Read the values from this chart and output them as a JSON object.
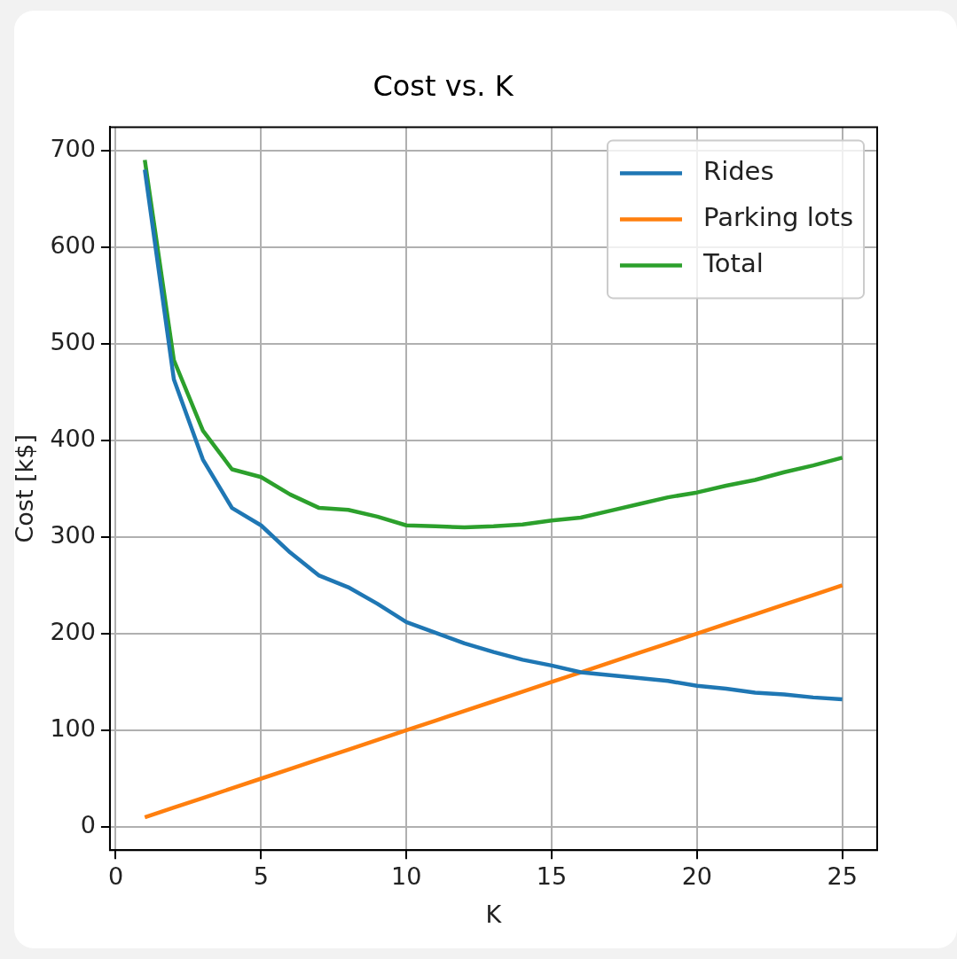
{
  "chart_data": {
    "type": "line",
    "title": "Cost vs. K",
    "xlabel": "K",
    "ylabel": "Cost [k$]",
    "x": [
      1,
      2,
      3,
      4,
      5,
      6,
      7,
      8,
      9,
      10,
      11,
      12,
      13,
      14,
      15,
      16,
      17,
      18,
      19,
      20,
      21,
      22,
      23,
      24,
      25
    ],
    "series": [
      {
        "name": "Rides",
        "color": "#1f77b4",
        "values": [
          680,
          463,
          380,
          330,
          312,
          284,
          260,
          248,
          231,
          212,
          201,
          190,
          181,
          173,
          167,
          160,
          157,
          154,
          151,
          146,
          143,
          139,
          137,
          134,
          132
        ]
      },
      {
        "name": "Parking lots",
        "color": "#ff7f0e",
        "values": [
          10,
          20,
          30,
          40,
          50,
          60,
          70,
          80,
          90,
          100,
          110,
          120,
          130,
          140,
          150,
          160,
          170,
          180,
          190,
          200,
          210,
          220,
          230,
          240,
          250
        ]
      },
      {
        "name": "Total",
        "color": "#2ca02c",
        "values": [
          690,
          483,
          410,
          370,
          362,
          344,
          330,
          328,
          321,
          312,
          311,
          310,
          311,
          313,
          317,
          320,
          327,
          334,
          341,
          346,
          353,
          359,
          367,
          374,
          382
        ]
      }
    ],
    "xlim": [
      -0.2,
      26.2
    ],
    "xticks": [
      0,
      5,
      10,
      15,
      20,
      25
    ],
    "ylim": [
      -24,
      724
    ],
    "yticks": [
      0,
      100,
      200,
      300,
      400,
      500,
      600,
      700
    ],
    "grid": true,
    "legend": "top right",
    "marker": "none",
    "line_style": "solid"
  }
}
